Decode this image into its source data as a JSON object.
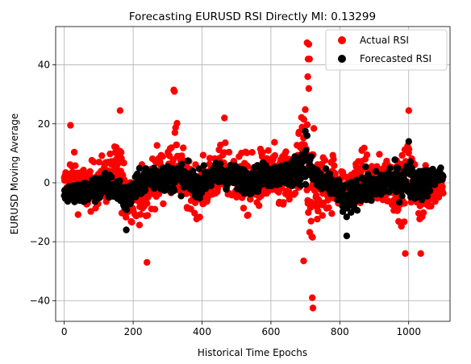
{
  "chart_data": {
    "type": "scatter",
    "title": "Forecasting EURUSD RSI Directly MI: 0.13299",
    "xlabel": "Historical Time Epochs",
    "ylabel": "EURUSD Moving Average",
    "xlim": [
      -25,
      1120
    ],
    "ylim": [
      -47,
      53
    ],
    "xticks": [
      0,
      200,
      400,
      600,
      800,
      1000
    ],
    "yticks": [
      -40,
      -20,
      0,
      20,
      40
    ],
    "grid": true,
    "legend_position": "top-right",
    "series": [
      {
        "name": "Actual RSI",
        "color": "#ff0000",
        "n_points": 1100,
        "envelope": [
          {
            "x": 0,
            "min": -17,
            "max": 13
          },
          {
            "x": 20,
            "min": -15,
            "max": 19
          },
          {
            "x": 60,
            "min": -18,
            "max": 13
          },
          {
            "x": 100,
            "min": -16,
            "max": 16
          },
          {
            "x": 140,
            "min": -14,
            "max": 19
          },
          {
            "x": 160,
            "min": -15,
            "max": 25
          },
          {
            "x": 180,
            "min": -22,
            "max": 13
          },
          {
            "x": 220,
            "min": -20,
            "max": 12
          },
          {
            "x": 240,
            "min": -27,
            "max": 16
          },
          {
            "x": 260,
            "min": -18,
            "max": 23
          },
          {
            "x": 300,
            "min": -14,
            "max": 18
          },
          {
            "x": 320,
            "min": -15,
            "max": 32
          },
          {
            "x": 360,
            "min": -20,
            "max": 16
          },
          {
            "x": 400,
            "min": -18,
            "max": 15
          },
          {
            "x": 440,
            "min": -14,
            "max": 20
          },
          {
            "x": 460,
            "min": -15,
            "max": 22
          },
          {
            "x": 500,
            "min": -16,
            "max": 20
          },
          {
            "x": 540,
            "min": -23,
            "max": 20
          },
          {
            "x": 580,
            "min": -16,
            "max": 21
          },
          {
            "x": 620,
            "min": -20,
            "max": 22
          },
          {
            "x": 660,
            "min": -22,
            "max": 21
          },
          {
            "x": 700,
            "min": -27,
            "max": 48
          },
          {
            "x": 720,
            "min": -42,
            "max": 35
          },
          {
            "x": 740,
            "min": -24,
            "max": 21
          },
          {
            "x": 780,
            "min": -18,
            "max": 19
          },
          {
            "x": 820,
            "min": -16,
            "max": 10
          },
          {
            "x": 860,
            "min": -14,
            "max": 20
          },
          {
            "x": 900,
            "min": -17,
            "max": 17
          },
          {
            "x": 940,
            "min": -16,
            "max": 18
          },
          {
            "x": 980,
            "min": -23,
            "max": 19
          },
          {
            "x": 1000,
            "min": -18,
            "max": 24
          },
          {
            "x": 1040,
            "min": -24,
            "max": 14
          },
          {
            "x": 1080,
            "min": -12,
            "max": 13
          },
          {
            "x": 1100,
            "min": -10,
            "max": 11
          }
        ],
        "outliers": [
          {
            "x": 18,
            "y": 19.5
          },
          {
            "x": 162,
            "y": 24.5
          },
          {
            "x": 240,
            "y": -27
          },
          {
            "x": 318,
            "y": 31.5
          },
          {
            "x": 320,
            "y": 31
          },
          {
            "x": 465,
            "y": 22
          },
          {
            "x": 705,
            "y": 47.5
          },
          {
            "x": 710,
            "y": 47
          },
          {
            "x": 708,
            "y": 42
          },
          {
            "x": 712,
            "y": 42
          },
          {
            "x": 707,
            "y": 36
          },
          {
            "x": 710,
            "y": 32
          },
          {
            "x": 720,
            "y": -39
          },
          {
            "x": 722,
            "y": -42.5
          },
          {
            "x": 695,
            "y": -26.5
          },
          {
            "x": 1035,
            "y": -24
          },
          {
            "x": 990,
            "y": -24
          },
          {
            "x": 1000,
            "y": 24.5
          }
        ]
      },
      {
        "name": "Forecasted RSI",
        "color": "#000000",
        "n_points": 1100,
        "envelope": [
          {
            "x": 0,
            "min": -9,
            "max": 2
          },
          {
            "x": 40,
            "min": -13,
            "max": 5
          },
          {
            "x": 80,
            "min": -11,
            "max": 6
          },
          {
            "x": 120,
            "min": -10,
            "max": 8
          },
          {
            "x": 160,
            "min": -11,
            "max": 6
          },
          {
            "x": 180,
            "min": -16,
            "max": 4
          },
          {
            "x": 220,
            "min": -8,
            "max": 8
          },
          {
            "x": 260,
            "min": -8,
            "max": 13
          },
          {
            "x": 300,
            "min": -7,
            "max": 10
          },
          {
            "x": 340,
            "min": -8,
            "max": 12
          },
          {
            "x": 380,
            "min": -9,
            "max": 8
          },
          {
            "x": 420,
            "min": -7,
            "max": 10
          },
          {
            "x": 460,
            "min": -6,
            "max": 12
          },
          {
            "x": 500,
            "min": -7,
            "max": 10
          },
          {
            "x": 540,
            "min": -8,
            "max": 9
          },
          {
            "x": 580,
            "min": -6,
            "max": 11
          },
          {
            "x": 620,
            "min": -5,
            "max": 10
          },
          {
            "x": 660,
            "min": -6,
            "max": 13
          },
          {
            "x": 700,
            "min": -5,
            "max": 18
          },
          {
            "x": 740,
            "min": -8,
            "max": 9
          },
          {
            "x": 780,
            "min": -9,
            "max": 7
          },
          {
            "x": 820,
            "min": -18,
            "max": 4
          },
          {
            "x": 860,
            "min": -12,
            "max": 9
          },
          {
            "x": 900,
            "min": -12,
            "max": 8
          },
          {
            "x": 940,
            "min": -10,
            "max": 12
          },
          {
            "x": 980,
            "min": -10,
            "max": 10
          },
          {
            "x": 1000,
            "min": -12,
            "max": 14
          },
          {
            "x": 1040,
            "min": -11,
            "max": 10
          },
          {
            "x": 1080,
            "min": -5,
            "max": 9
          },
          {
            "x": 1100,
            "min": -3,
            "max": 8
          }
        ],
        "outliers": [
          {
            "x": 180,
            "y": -16
          },
          {
            "x": 700,
            "y": 17.5
          },
          {
            "x": 705,
            "y": 16
          },
          {
            "x": 820,
            "y": -18
          },
          {
            "x": 1000,
            "y": 14
          }
        ]
      }
    ]
  }
}
